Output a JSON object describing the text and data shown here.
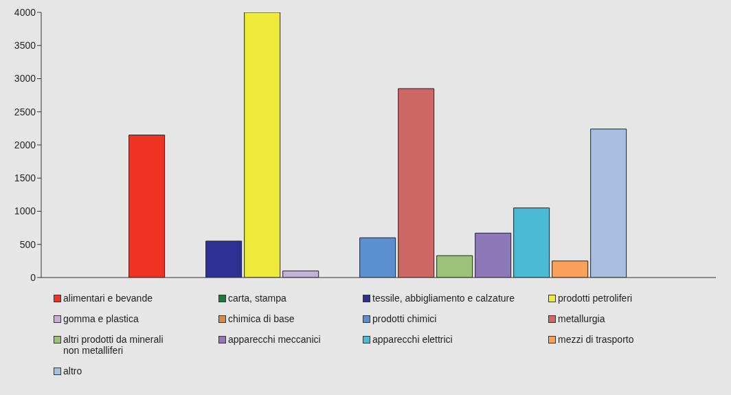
{
  "chart_data": {
    "type": "bar",
    "categories": [
      null
    ],
    "series": [
      {
        "name": "alimentari e bevande",
        "color": "#ee3524",
        "values": [
          2150
        ]
      },
      {
        "name": "carta, stampa",
        "color": "#1a7a3a",
        "values": [
          0
        ]
      },
      {
        "name": "tessile, abbigliamento e calzature",
        "color": "#2e3192",
        "values": [
          550
        ]
      },
      {
        "name": "prodotti petroliferi",
        "color": "#eeea3a",
        "values": [
          4000
        ]
      },
      {
        "name": "gomma e plastica",
        "color": "#c5b0d8",
        "values": [
          100
        ]
      },
      {
        "name": "chimica di base",
        "color": "#d88a4c",
        "values": [
          0
        ]
      },
      {
        "name": "prodotti chimici",
        "color": "#5b8fd0",
        "values": [
          600
        ]
      },
      {
        "name": "metallurgia",
        "color": "#cd6866",
        "values": [
          2850
        ]
      },
      {
        "name": "altri prodotti da minerali non metalliferi",
        "color": "#9dc37a",
        "values": [
          330
        ]
      },
      {
        "name": "apparecchi meccanici",
        "color": "#8e79b8",
        "values": [
          670
        ]
      },
      {
        "name": "apparecchi elettrici",
        "color": "#4bbbd3",
        "values": [
          1050
        ]
      },
      {
        "name": "mezzi di trasporto",
        "color": "#f8a15a",
        "values": [
          250
        ]
      },
      {
        "name": "altro",
        "color": "#a9bfe0",
        "values": [
          2240
        ]
      }
    ],
    "ylim": [
      0,
      4000
    ],
    "yticks": [
      0,
      500,
      1000,
      1500,
      2000,
      2500,
      3000,
      3500,
      4000
    ],
    "grid": false,
    "legend": "bottom",
    "tick_labels": "y"
  }
}
